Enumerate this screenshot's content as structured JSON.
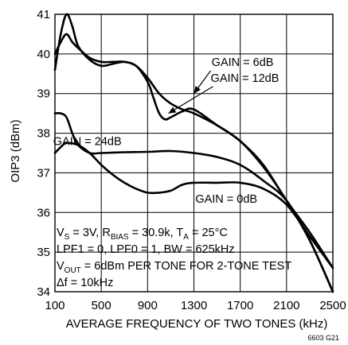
{
  "figure_code": "6603 G21",
  "chart_data": {
    "type": "line",
    "xlabel": "AVERAGE FREQUENCY OF TWO TONES (kHz)",
    "ylabel": "OIP3 (dBm)",
    "xlim": [
      100,
      2500
    ],
    "ylim": [
      34,
      41
    ],
    "xticks": [
      100,
      500,
      900,
      1300,
      1700,
      2100,
      2500
    ],
    "yticks": [
      34,
      35,
      36,
      37,
      38,
      39,
      40,
      41
    ],
    "grid": true,
    "series": [
      {
        "name": "GAIN = 6dB",
        "x": [
          100,
          150,
          200,
          250,
          300,
          400,
          500,
          600,
          700,
          800,
          900,
          1000,
          1100,
          1200,
          1300,
          1500,
          1700,
          1900,
          2100,
          2300,
          2500
        ],
        "y": [
          39.6,
          40.5,
          41.0,
          40.7,
          40.2,
          39.85,
          39.7,
          39.75,
          39.8,
          39.7,
          39.4,
          39.0,
          38.75,
          38.6,
          38.5,
          38.2,
          37.8,
          37.2,
          36.3,
          35.5,
          34.6
        ]
      },
      {
        "name": "GAIN = 12dB",
        "x": [
          100,
          150,
          200,
          250,
          300,
          400,
          500,
          600,
          700,
          800,
          900,
          950,
          1000,
          1050,
          1100,
          1200,
          1300,
          1500,
          1700,
          1900,
          2100,
          2300,
          2500
        ],
        "y": [
          40.0,
          40.3,
          40.5,
          40.3,
          40.15,
          39.9,
          39.8,
          39.8,
          39.8,
          39.7,
          39.3,
          38.9,
          38.5,
          38.35,
          38.4,
          38.55,
          38.6,
          38.2,
          37.8,
          37.15,
          36.3,
          35.3,
          34.0
        ]
      },
      {
        "name": "GAIN = 24dB",
        "x": [
          100,
          150,
          200,
          250,
          300,
          400,
          500,
          700,
          900,
          1100,
          1300,
          1500,
          1700,
          1900,
          2100,
          2300,
          2500
        ],
        "y": [
          38.5,
          38.5,
          38.4,
          38.0,
          37.7,
          37.5,
          37.5,
          37.52,
          37.53,
          37.55,
          37.5,
          37.4,
          37.2,
          36.8,
          36.3,
          35.3,
          34.0
        ]
      },
      {
        "name": "GAIN = 0dB",
        "x": [
          100,
          150,
          200,
          300,
          400,
          500,
          600,
          700,
          800,
          900,
          1000,
          1100,
          1200,
          1300,
          1500,
          1700,
          1900,
          2100,
          2300,
          2500
        ],
        "y": [
          37.5,
          37.65,
          37.75,
          37.7,
          37.5,
          37.2,
          36.95,
          36.75,
          36.6,
          36.5,
          36.5,
          36.55,
          36.7,
          36.75,
          36.75,
          36.75,
          36.6,
          36.2,
          35.4,
          34.6
        ]
      }
    ],
    "annotations": [
      {
        "text": "GAIN = 6dB",
        "at": [
          1720,
          39.7
        ],
        "arrow_to": [
          1300,
          39.0
        ]
      },
      {
        "text": "GAIN = 12dB",
        "at": [
          1740,
          39.3
        ],
        "arrow_to": [
          1080,
          38.5
        ]
      },
      {
        "text": "GAIN = 24dB",
        "at": [
          380,
          37.7
        ]
      },
      {
        "text": "GAIN = 0dB",
        "at": [
          1580,
          36.25
        ]
      }
    ],
    "conditions": {
      "line1": {
        "a": "V",
        "a_sub": "S",
        "b": " = 3V, R",
        "b_sub": "BIAS",
        "c": " = 30.9k, T",
        "c_sub": "A",
        "d": " = 25°C"
      },
      "line2": "LPF1 = 0, LPF0 = 1, BW = 625kHz",
      "line3": {
        "a": "V",
        "a_sub": "OUT",
        "b": " = 6dBm PER TONE FOR 2-TONE TEST"
      },
      "line4": "Δf = 10kHz"
    }
  }
}
